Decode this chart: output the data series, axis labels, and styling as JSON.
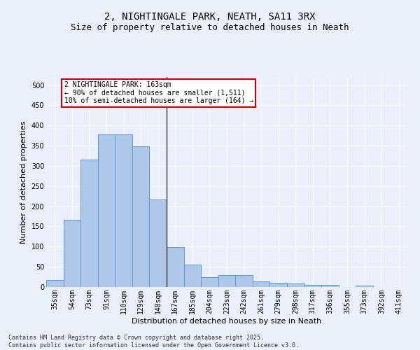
{
  "title": "2, NIGHTINGALE PARK, NEATH, SA11 3RX",
  "subtitle": "Size of property relative to detached houses in Neath",
  "xlabel": "Distribution of detached houses by size in Neath",
  "ylabel": "Number of detached properties",
  "categories": [
    "35sqm",
    "54sqm",
    "73sqm",
    "91sqm",
    "110sqm",
    "129sqm",
    "148sqm",
    "167sqm",
    "185sqm",
    "204sqm",
    "223sqm",
    "242sqm",
    "261sqm",
    "279sqm",
    "298sqm",
    "317sqm",
    "336sqm",
    "355sqm",
    "373sqm",
    "392sqm",
    "411sqm"
  ],
  "values": [
    18,
    167,
    315,
    378,
    378,
    348,
    217,
    99,
    55,
    25,
    29,
    29,
    14,
    10,
    9,
    6,
    5,
    0,
    4,
    0,
    0
  ],
  "bar_color": "#aec6e8",
  "bar_edge_color": "#5b9bd5",
  "background_color": "#eaf0fb",
  "grid_color": "#ffffff",
  "vline_color": "#333333",
  "annotation_text": "2 NIGHTINGALE PARK: 163sqm\n← 90% of detached houses are smaller (1,511)\n10% of semi-detached houses are larger (164) →",
  "annotation_box_color": "#ffffff",
  "annotation_box_edge_color": "#cc0000",
  "ylim": [
    0,
    520
  ],
  "yticks": [
    0,
    50,
    100,
    150,
    200,
    250,
    300,
    350,
    400,
    450,
    500
  ],
  "footer_text": "Contains HM Land Registry data © Crown copyright and database right 2025.\nContains public sector information licensed under the Open Government Licence v3.0.",
  "title_fontsize": 10,
  "subtitle_fontsize": 9,
  "axis_label_fontsize": 8,
  "tick_fontsize": 7,
  "footer_fontsize": 6,
  "annotation_fontsize": 7
}
